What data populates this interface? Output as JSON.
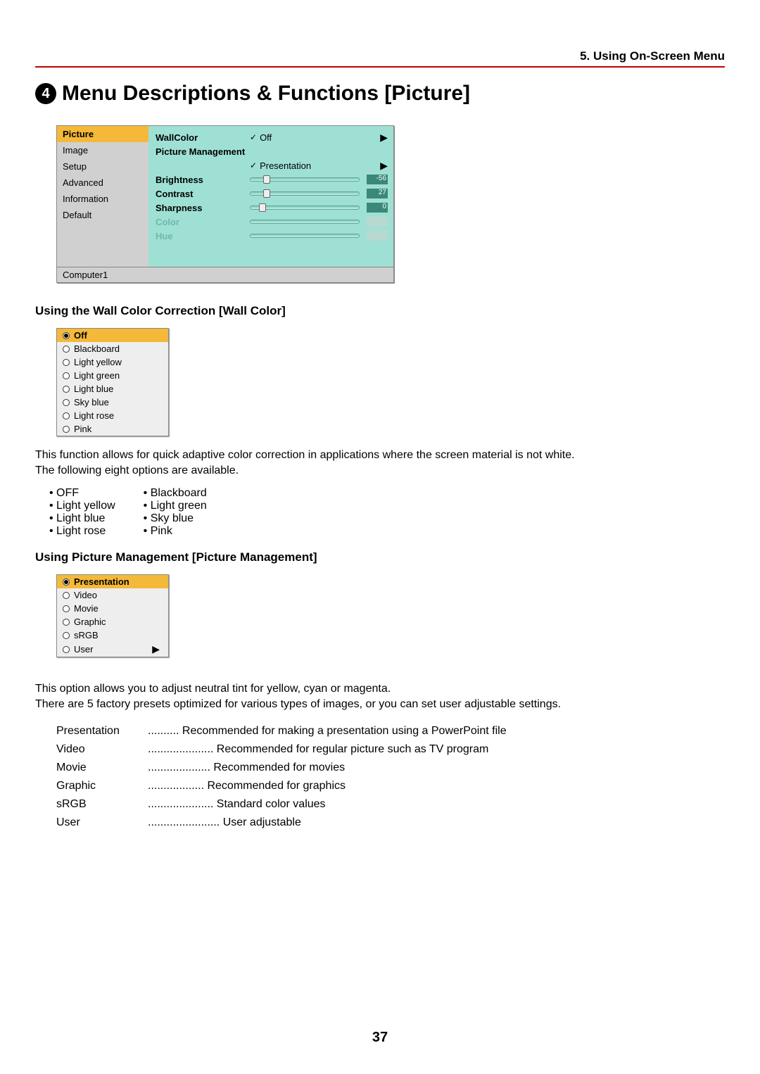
{
  "header": {
    "section": "5. Using On-Screen Menu"
  },
  "title": {
    "number": "4",
    "text": "Menu Descriptions & Functions [Picture]"
  },
  "menu_panel": {
    "sidebar_items": [
      "Picture",
      "Image",
      "Setup",
      "Advanced",
      "Information",
      "Default"
    ],
    "selected_index": 0,
    "content": {
      "wallcolor_label": "WallColor",
      "wallcolor_value": "Off",
      "picmgmt_label": "Picture Management",
      "picmgmt_value": "Presentation",
      "sliders": [
        {
          "label": "Brightness",
          "value": "-56",
          "thumb_pct": 12,
          "disabled": false
        },
        {
          "label": "Contrast",
          "value": "27",
          "thumb_pct": 12,
          "disabled": false
        },
        {
          "label": "Sharpness",
          "value": "0",
          "thumb_pct": 8,
          "disabled": false
        },
        {
          "label": "Color",
          "value": "",
          "thumb_pct": 50,
          "disabled": true
        },
        {
          "label": "Hue",
          "value": "",
          "thumb_pct": 50,
          "disabled": true
        }
      ]
    },
    "footer": "Computer1"
  },
  "wallcolor_section": {
    "heading": "Using the Wall Color Correction [Wall Color]",
    "options": [
      "Off",
      "Blackboard",
      "Light yellow",
      "Light green",
      "Light blue",
      "Sky blue",
      "Light rose",
      "Pink"
    ],
    "selected_index": 0,
    "desc1": "This function allows for quick adaptive color correction in applications where the screen material is not white.",
    "desc2": "The following eight options are available.",
    "bullets_col1": [
      "OFF",
      "Light yellow",
      "Light blue",
      "Light rose"
    ],
    "bullets_col2": [
      "Blackboard",
      "Light green",
      "Sky blue",
      "Pink"
    ]
  },
  "picmgmt_section": {
    "heading": "Using Picture Management [Picture Management]",
    "options": [
      "Presentation",
      "Video",
      "Movie",
      "Graphic",
      "sRGB",
      "User"
    ],
    "selected_index": 0,
    "user_has_arrow": true,
    "desc1": "This option allows you to adjust neutral tint for yellow, cyan or magenta.",
    "desc2": "There are 5 factory presets optimized for various types of images, or you can set user adjustable settings.",
    "presets": [
      {
        "name": "Presentation",
        "dots": "..........",
        "desc": "Recommended for making a presentation using a PowerPoint file"
      },
      {
        "name": "Video",
        "dots": ".....................",
        "desc": "Recommended for regular picture such as TV program"
      },
      {
        "name": "Movie",
        "dots": "....................",
        "desc": "Recommended for movies"
      },
      {
        "name": "Graphic",
        "dots": "..................",
        "desc": "Recommended for graphics"
      },
      {
        "name": "sRGB",
        "dots": ".....................",
        "desc": "Standard color values"
      },
      {
        "name": "User",
        "dots": ".......................",
        "desc": "User adjustable"
      }
    ]
  },
  "page_number": "37",
  "colors": {
    "accent_red": "#c00000",
    "highlight": "#f5b93a",
    "teal_bg": "#9fe0d4"
  }
}
